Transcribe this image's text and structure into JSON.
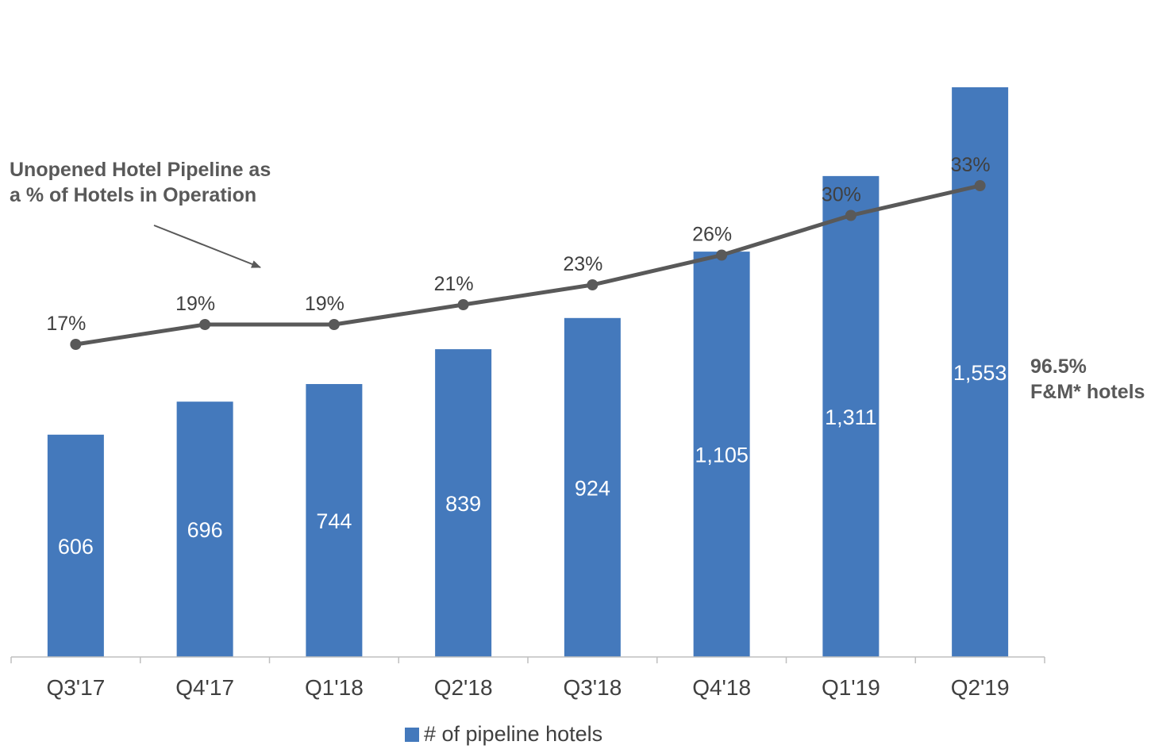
{
  "chart_data": {
    "type": "bar",
    "categories": [
      "Q3'17",
      "Q4'17",
      "Q1'18",
      "Q2'18",
      "Q3'18",
      "Q4'18",
      "Q1'19",
      "Q2'19"
    ],
    "series": [
      {
        "name": "# of pipeline hotels",
        "type": "bar",
        "values": [
          606,
          696,
          744,
          839,
          924,
          1105,
          1311,
          1553
        ],
        "labels": [
          "606",
          "696",
          "744",
          "839",
          "924",
          "1,105",
          "1,311",
          "1,553"
        ],
        "color": "#4479BC"
      },
      {
        "type": "line",
        "values": [
          17,
          19,
          19,
          21,
          23,
          26,
          30,
          33
        ],
        "labels": [
          "17%",
          "19%",
          "19%",
          "21%",
          "23%",
          "26%",
          "30%",
          "33%"
        ],
        "color": "#595959"
      }
    ],
    "annotations": {
      "line_label": [
        "Unopened Hotel Pipeline as",
        "a % of Hotels in Operation"
      ],
      "side_note": [
        "96.5%",
        "F&M* hotels"
      ]
    },
    "legend": {
      "position": "bottom-center",
      "entries": [
        "# of pipeline hotels"
      ]
    },
    "grid": false
  }
}
